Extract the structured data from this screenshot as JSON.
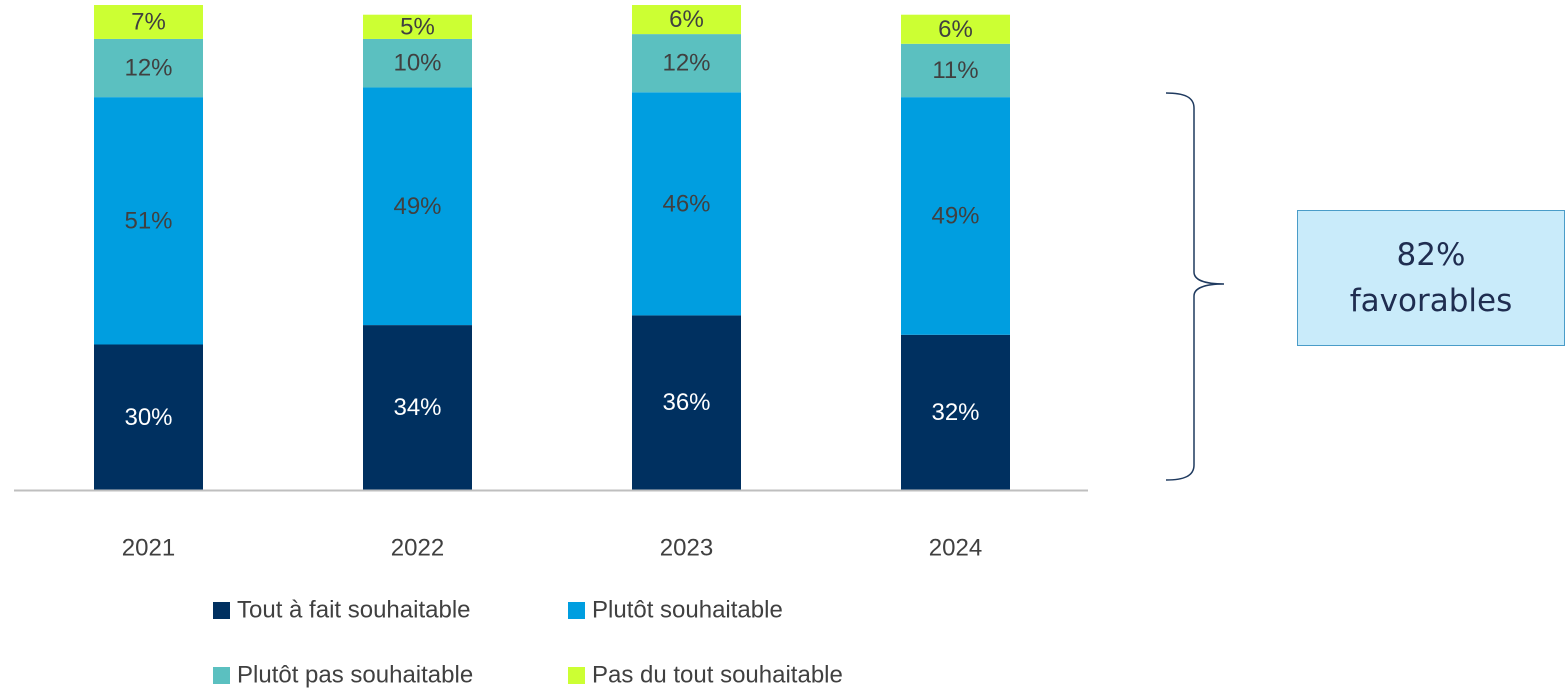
{
  "chart_data": {
    "type": "bar",
    "stacked": true,
    "categories": [
      "2021",
      "2022",
      "2023",
      "2024"
    ],
    "series": [
      {
        "name": "Tout à fait souhaitable",
        "values": [
          30,
          34,
          36,
          32
        ],
        "labels": [
          "30%",
          "34%",
          "36%",
          "32%"
        ],
        "color": "#003060",
        "label_color": "#ffffff"
      },
      {
        "name": "Plutôt souhaitable",
        "values": [
          51,
          49,
          46,
          49
        ],
        "labels": [
          "51%",
          "49%",
          "46%",
          "49%"
        ],
        "color": "#009ee0",
        "label_color": "#404040"
      },
      {
        "name": "Plutôt pas souhaitable",
        "values": [
          12,
          10,
          12,
          11
        ],
        "labels": [
          "12%",
          "10%",
          "12%",
          "11%"
        ],
        "color": "#5bc0c0",
        "label_color": "#404040"
      },
      {
        "name": "Pas du tout souhaitable",
        "values": [
          7,
          5,
          6,
          6
        ],
        "labels": [
          "7%",
          "5%",
          "6%",
          "6%"
        ],
        "color": "#ccff33",
        "label_color": "#404040"
      }
    ],
    "title": "",
    "xlabel": "",
    "ylabel": "",
    "ylim": [
      0,
      100
    ],
    "grid": false,
    "legend": "bottom"
  },
  "callout": {
    "line1": "82%",
    "line2": "favorables"
  }
}
